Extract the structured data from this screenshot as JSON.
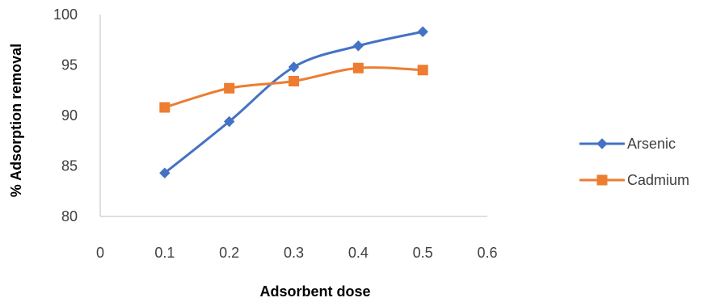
{
  "chart_data": {
    "type": "line",
    "title": "",
    "xlabel": "Adsorbent dose",
    "ylabel": "% Adsorption removal",
    "xlim": [
      0,
      0.6
    ],
    "ylim": [
      80,
      100
    ],
    "x_ticks": [
      "0",
      "0.1",
      "0.2",
      "0.3",
      "0.4",
      "0.5",
      "0.6"
    ],
    "y_ticks": [
      "80",
      "85",
      "90",
      "95",
      "100"
    ],
    "grid": false,
    "legend_position": "right",
    "smooth": true,
    "series": [
      {
        "name": "Arsenic",
        "color": "#4472C4",
        "marker": "diamond",
        "x": [
          0.1,
          0.2,
          0.3,
          0.4,
          0.5
        ],
        "y": [
          84.3,
          89.4,
          94.8,
          96.9,
          98.3
        ]
      },
      {
        "name": "Cadmium",
        "color": "#ED7D31",
        "marker": "square",
        "x": [
          0.1,
          0.2,
          0.3,
          0.4,
          0.5
        ],
        "y": [
          90.8,
          92.7,
          93.4,
          94.7,
          94.5
        ]
      }
    ]
  }
}
